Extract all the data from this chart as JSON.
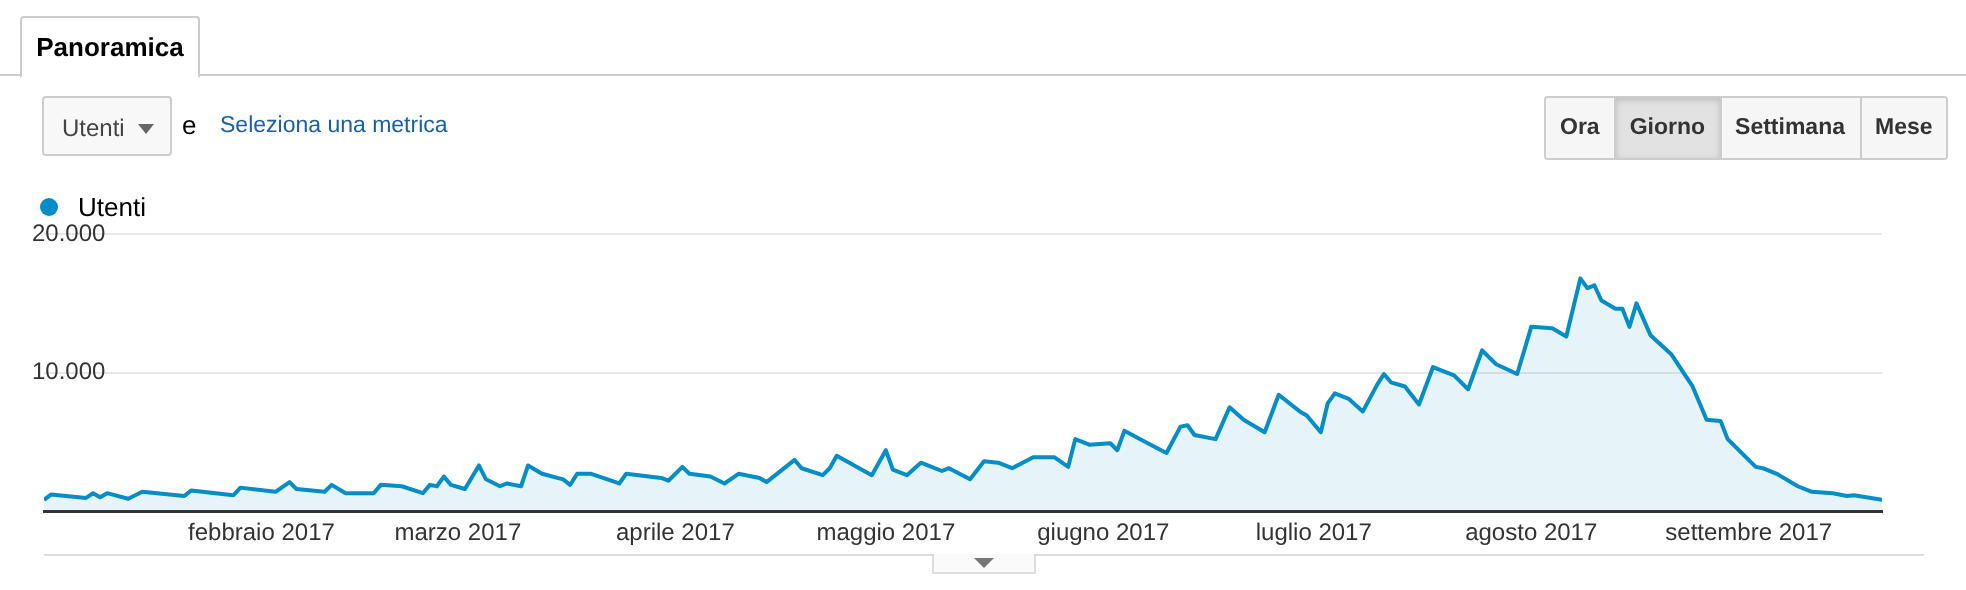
{
  "chart_data": {
    "type": "area",
    "legend": "top left",
    "grid": "y",
    "marker": "none",
    "line_style": "solid",
    "xlim": [
      "2017-01-01",
      "2017-09-20"
    ],
    "xticks": [
      {
        "value": "2017-02-01",
        "label": "febbraio 2017"
      },
      {
        "value": "2017-03-01",
        "label": "marzo 2017"
      },
      {
        "value": "2017-04-01",
        "label": "aprile 2017"
      },
      {
        "value": "2017-05-01",
        "label": "maggio 2017"
      },
      {
        "value": "2017-06-01",
        "label": "giugno 2017"
      },
      {
        "value": "2017-07-01",
        "label": "luglio 2017"
      },
      {
        "value": "2017-08-01",
        "label": "agosto 2017"
      },
      {
        "value": "2017-09-01",
        "label": "settembre 2017"
      }
    ],
    "ylim": [
      0,
      20000
    ],
    "yticks": [
      {
        "value": 10000,
        "label": "10.000"
      },
      {
        "value": 20000,
        "label": "20.000"
      }
    ],
    "annotations": [
      "Panoramica",
      "Utenti",
      "e",
      "Seleziona una metrica",
      "Ora",
      "Giorno",
      "Settimana",
      "Mese"
    ],
    "series": [
      {
        "name": "Utenti",
        "color": "#058dc7",
        "x": [
          "2017-01-01",
          "2017-01-02",
          "2017-01-07",
          "2017-01-08",
          "2017-01-09",
          "2017-01-10",
          "2017-01-13",
          "2017-01-15",
          "2017-01-21",
          "2017-01-22",
          "2017-01-28",
          "2017-01-29",
          "2017-02-03",
          "2017-02-05",
          "2017-02-06",
          "2017-02-10",
          "2017-02-11",
          "2017-02-13",
          "2017-02-17",
          "2017-02-18",
          "2017-02-21",
          "2017-02-24",
          "2017-02-25",
          "2017-02-26",
          "2017-02-27",
          "2017-02-28",
          "2017-03-02",
          "2017-03-04",
          "2017-03-05",
          "2017-03-07",
          "2017-03-08",
          "2017-03-10",
          "2017-03-11",
          "2017-03-13",
          "2017-03-16",
          "2017-03-17",
          "2017-03-18",
          "2017-03-20",
          "2017-03-24",
          "2017-03-25",
          "2017-03-30",
          "2017-03-31",
          "2017-04-02",
          "2017-04-03",
          "2017-04-06",
          "2017-04-08",
          "2017-04-10",
          "2017-04-13",
          "2017-04-14",
          "2017-04-18",
          "2017-04-19",
          "2017-04-22",
          "2017-04-23",
          "2017-04-24",
          "2017-04-29",
          "2017-05-01",
          "2017-05-02",
          "2017-05-04",
          "2017-05-06",
          "2017-05-09",
          "2017-05-10",
          "2017-05-13",
          "2017-05-15",
          "2017-05-17",
          "2017-05-19",
          "2017-05-22",
          "2017-05-25",
          "2017-05-27",
          "2017-05-28",
          "2017-05-30",
          "2017-06-02",
          "2017-06-03",
          "2017-06-04",
          "2017-06-07",
          "2017-06-10",
          "2017-06-12",
          "2017-06-13",
          "2017-06-14",
          "2017-06-17",
          "2017-06-19",
          "2017-06-21",
          "2017-06-24",
          "2017-06-26",
          "2017-06-29",
          "2017-06-30",
          "2017-07-02",
          "2017-07-03",
          "2017-07-04",
          "2017-07-06",
          "2017-07-08",
          "2017-07-10",
          "2017-07-11",
          "2017-07-12",
          "2017-07-14",
          "2017-07-16",
          "2017-07-18",
          "2017-07-21",
          "2017-07-23",
          "2017-07-25",
          "2017-07-27",
          "2017-07-30",
          "2017-08-01",
          "2017-08-04",
          "2017-08-06",
          "2017-08-08",
          "2017-08-09",
          "2017-08-10",
          "2017-08-11",
          "2017-08-13",
          "2017-08-14",
          "2017-08-15",
          "2017-08-16",
          "2017-08-18",
          "2017-08-21",
          "2017-08-24",
          "2017-08-26",
          "2017-08-28",
          "2017-08-29",
          "2017-09-02",
          "2017-09-03",
          "2017-09-05",
          "2017-09-08",
          "2017-09-10",
          "2017-09-13",
          "2017-09-15",
          "2017-09-16",
          "2017-09-20"
        ],
        "values": [
          820,
          1200,
          960,
          1300,
          1000,
          1300,
          900,
          1400,
          1100,
          1500,
          1150,
          1700,
          1400,
          2100,
          1600,
          1400,
          1900,
          1300,
          1300,
          1900,
          1800,
          1300,
          1900,
          1800,
          2500,
          1900,
          1600,
          3300,
          2300,
          1800,
          2000,
          1800,
          3300,
          2700,
          2300,
          1900,
          2700,
          2700,
          2000,
          2700,
          2400,
          2200,
          3200,
          2700,
          2500,
          2000,
          2700,
          2400,
          2100,
          3700,
          3100,
          2600,
          3100,
          4000,
          2600,
          4400,
          3000,
          2600,
          3500,
          2900,
          3100,
          2300,
          3600,
          3500,
          3100,
          3900,
          3900,
          3200,
          5200,
          4800,
          4900,
          4400,
          5800,
          5000,
          4200,
          6100,
          6200,
          5500,
          5200,
          7500,
          6600,
          5700,
          8400,
          7200,
          6900,
          5700,
          7800,
          8500,
          8100,
          7200,
          9100,
          9900,
          9300,
          9000,
          7700,
          10400,
          9800,
          8800,
          11600,
          10600,
          9900,
          13300,
          13200,
          12600,
          16800,
          16100,
          16300,
          15200,
          14600,
          14600,
          13300,
          15000,
          12700,
          11300,
          9000,
          6600,
          6500,
          5200,
          3200,
          3100,
          2700,
          1800,
          1400,
          1300,
          1100,
          1150,
          820
        ]
      }
    ]
  }
}
